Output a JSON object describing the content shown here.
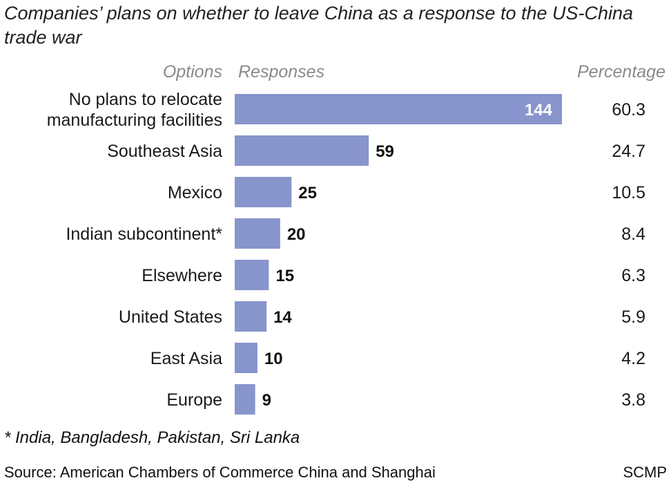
{
  "title": "Companies’ plans on whether to leave China as a response to the US-China trade war",
  "headers": {
    "options": "Options",
    "responses": "Responses",
    "percentage": "Percentage"
  },
  "footnote": "* India, Bangladesh, Pakistan, Sri Lanka",
  "source": "Source: American Chambers of Commerce China and Shanghai",
  "credit": "SCMP",
  "colors": {
    "bar": "#8895cc",
    "inside_label": "#ffffff",
    "outside_label": "#111111"
  },
  "chart_data": {
    "type": "bar",
    "orientation": "horizontal",
    "categories": [
      [
        "No plans to relocate",
        "manufacturing facilities"
      ],
      [
        "Southeast Asia"
      ],
      [
        "Mexico"
      ],
      [
        "Indian subcontinent*"
      ],
      [
        "Elsewhere"
      ],
      [
        "United States"
      ],
      [
        "East Asia"
      ],
      [
        "Europe"
      ]
    ],
    "values": [
      144,
      59,
      25,
      20,
      15,
      14,
      10,
      9
    ],
    "percentages": [
      "60.3",
      "24.7",
      "10.5",
      "8.4",
      "6.3",
      "5.9",
      "4.2",
      "3.8"
    ],
    "xlim": [
      0,
      144
    ],
    "grid": false,
    "legend": "none"
  }
}
